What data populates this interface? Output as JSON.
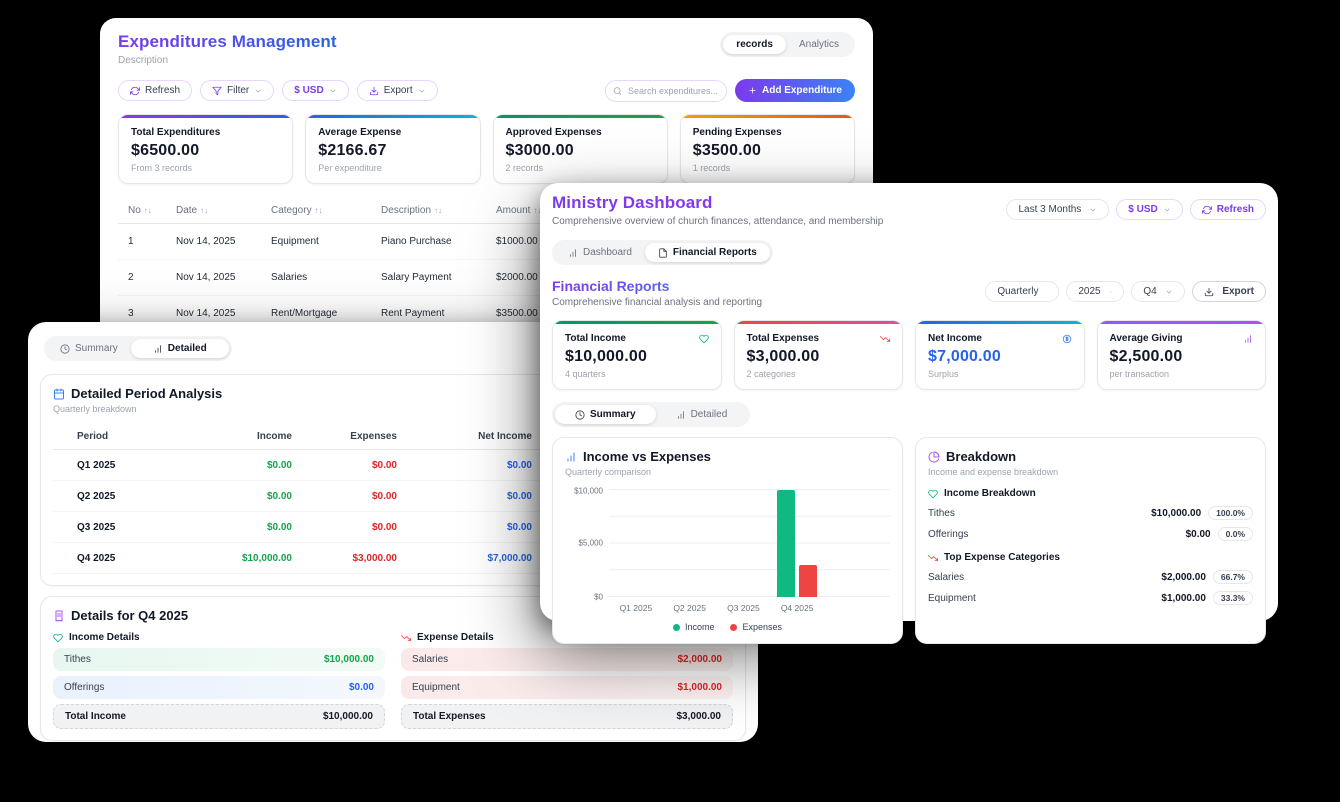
{
  "colors": {
    "accent_purple": "#7c3aed",
    "accent_blue": "#2563eb",
    "accent_cyan": "#06b6d4",
    "green": "#10b981",
    "green_text": "#16a34a",
    "red": "#ef4444",
    "red_text": "#dc2626",
    "orange": "#f97316",
    "violet": "#a855f7",
    "blue_text": "#2563eb",
    "background": "#000000"
  },
  "icons": {
    "refresh-icon": "circular-arrows",
    "filter-icon": "funnel",
    "chevron-down-icon": "v",
    "download-icon": "arrow-into-tray",
    "search-icon": "magnifier",
    "plus-icon": "+",
    "heart-icon": "heart-outline",
    "trending-down-icon": "down-right-arrow",
    "dollar-circle-icon": "$ in circle",
    "bar-chart-icon": "vertical-bars",
    "pie-chart-icon": "pie",
    "clock-icon": "clock",
    "calendar-icon": "calendar",
    "receipt-icon": "receipt",
    "file-text-icon": "document"
  },
  "expenditures": {
    "title": "Expenditures Management",
    "subtitle": "Description",
    "view_tabs": {
      "records": "records",
      "analytics": "Analytics"
    },
    "toolbar": {
      "refresh": "Refresh",
      "filter": "Filter",
      "currency": "$ USD",
      "export": "Export"
    },
    "search_placeholder": "Search expenditures...",
    "add_button": "Add Expenditure",
    "stats": [
      {
        "label": "Total Expenditures",
        "value": "$6500.00",
        "note": "From 3 records"
      },
      {
        "label": "Average Expense",
        "value": "$2166.67",
        "note": "Per expenditure"
      },
      {
        "label": "Approved Expenses",
        "value": "$3000.00",
        "note": "2 records"
      },
      {
        "label": "Pending Expenses",
        "value": "$3500.00",
        "note": "1 records"
      }
    ],
    "table": {
      "sort_glyph": "↑↓",
      "headers": [
        "No",
        "Date",
        "Category",
        "Description",
        "Amount"
      ],
      "rows": [
        {
          "no": "1",
          "date": "Nov 14, 2025",
          "category": "Equipment",
          "description": "Piano Purchase",
          "amount": "$1000.00"
        },
        {
          "no": "2",
          "date": "Nov 14, 2025",
          "category": "Salaries",
          "description": "Salary Payment",
          "amount": "$2000.00"
        },
        {
          "no": "3",
          "date": "Nov 14, 2025",
          "category": "Rent/Mortgage",
          "description": "Rent Payment",
          "amount": "$3500.00"
        }
      ]
    }
  },
  "ministry": {
    "title": "Ministry Dashboard",
    "subtitle": "Comprehensive overview of church finances, attendance, and membership",
    "range_select": "Last 3 Months",
    "currency_select": "$ USD",
    "refresh": "Refresh",
    "tabs": {
      "dashboard": "Dashboard",
      "financial": "Financial Reports"
    },
    "financial": {
      "title": "Financial Reports",
      "subtitle": "Comprehensive financial analysis and reporting",
      "period_select": "Quarterly",
      "year_select": "2025",
      "quarter_select": "Q4",
      "export": "Export",
      "stats": [
        {
          "label": "Total Income",
          "value": "$10,000.00",
          "note": "4 quarters"
        },
        {
          "label": "Total Expenses",
          "value": "$3,000.00",
          "note": "2 categories"
        },
        {
          "label": "Net Income",
          "value": "$7,000.00",
          "note": "Surplus"
        },
        {
          "label": "Average Giving",
          "value": "$2,500.00",
          "note": "per transaction"
        }
      ],
      "view_tabs": {
        "summary": "Summary",
        "detailed": "Detailed"
      },
      "breakdown": {
        "title": "Breakdown",
        "subtitle": "Income and expense breakdown",
        "income_header": "Income Breakdown",
        "income_rows": [
          {
            "label": "Tithes",
            "value": "$10,000.00",
            "pct": "100.0%"
          },
          {
            "label": "Offerings",
            "value": "$0.00",
            "pct": "0.0%"
          }
        ],
        "expense_header": "Top Expense Categories",
        "expense_rows": [
          {
            "label": "Salaries",
            "value": "$2,000.00",
            "pct": "66.7%"
          },
          {
            "label": "Equipment",
            "value": "$1,000.00",
            "pct": "33.3%"
          }
        ]
      }
    }
  },
  "detail": {
    "view_tabs": {
      "summary": "Summary",
      "detailed": "Detailed"
    },
    "period_analysis": {
      "title": "Detailed Period Analysis",
      "subtitle": "Quarterly breakdown",
      "headers": [
        "Period",
        "Income",
        "Expenses",
        "Net Income"
      ],
      "rows": [
        {
          "period": "Q1 2025",
          "income": "$0.00",
          "expenses": "$0.00",
          "net": "$0.00"
        },
        {
          "period": "Q2 2025",
          "income": "$0.00",
          "expenses": "$0.00",
          "net": "$0.00"
        },
        {
          "period": "Q3 2025",
          "income": "$0.00",
          "expenses": "$0.00",
          "net": "$0.00"
        },
        {
          "period": "Q4 2025",
          "income": "$10,000.00",
          "expenses": "$3,000.00",
          "net": "$7,000.00"
        }
      ]
    },
    "q4": {
      "title": "Details for Q4 2025",
      "income_header": "Income Details",
      "income_rows": [
        {
          "label": "Tithes",
          "value": "$10,000.00"
        },
        {
          "label": "Offerings",
          "value": "$0.00"
        }
      ],
      "income_total": {
        "label": "Total Income",
        "value": "$10,000.00"
      },
      "expense_header": "Expense Details",
      "expense_rows": [
        {
          "label": "Salaries",
          "value": "$2,000.00"
        },
        {
          "label": "Equipment",
          "value": "$1,000.00"
        }
      ],
      "expense_total": {
        "label": "Total Expenses",
        "value": "$3,000.00"
      }
    }
  },
  "chart_data": {
    "type": "bar",
    "title": "Income vs Expenses",
    "subtitle": "Quarterly comparison",
    "categories": [
      "Q1 2025",
      "Q2 2025",
      "Q3 2025",
      "Q4 2025"
    ],
    "series": [
      {
        "name": "Income",
        "color": "#10b981",
        "values": [
          0,
          0,
          0,
          10000
        ]
      },
      {
        "name": "Expenses",
        "color": "#ef4444",
        "values": [
          0,
          0,
          0,
          3000
        ]
      }
    ],
    "ylim": [
      0,
      10000
    ],
    "yticks": [
      {
        "value": 0,
        "label": "$0"
      },
      {
        "value": 5000,
        "label": "$5,000"
      },
      {
        "value": 10000,
        "label": "$10,000"
      }
    ],
    "grid": true,
    "legend_position": "bottom"
  }
}
